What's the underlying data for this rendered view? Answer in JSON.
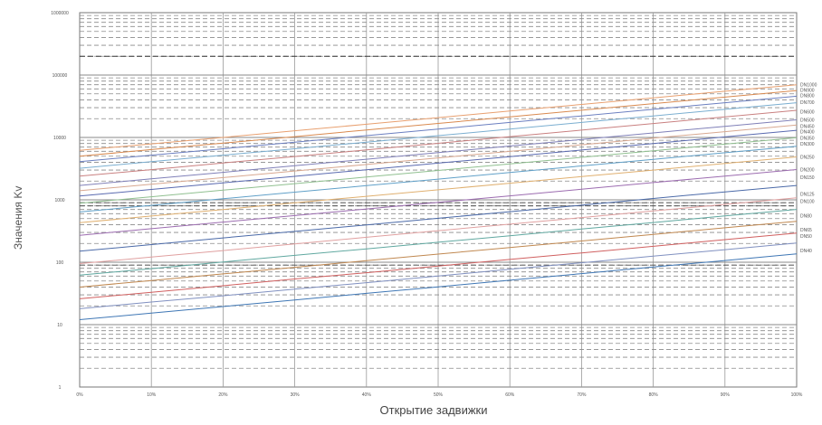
{
  "chart_data": {
    "type": "line",
    "xlabel": "Открытие задвижки",
    "ylabel": "Значения Kv",
    "yscale": "log",
    "ylim": [
      1,
      100000
    ],
    "x": [
      "0%",
      "10%",
      "20%",
      "30%",
      "40%",
      "50%",
      "60%",
      "70%",
      "80%",
      "90%",
      "100%"
    ],
    "x_tick_labels": [
      "0%",
      "10%",
      "20%",
      "30%",
      "40%",
      "50%",
      "60%",
      "70%",
      "80%",
      "90%",
      "100%"
    ],
    "y_tick_labels": [
      "1",
      "10",
      "100",
      "1000",
      "10000",
      "100000",
      "1000000"
    ],
    "grid": true,
    "legend": "right-end labels",
    "series": [
      {
        "name": "DN1000",
        "color": "#e8a070",
        "values": [
          6200,
          7900,
          10000,
          12800,
          16300,
          20800,
          26500,
          33800,
          43100,
          55000,
          70000
        ]
      },
      {
        "name": "DN900",
        "color": "#d98a50",
        "values": [
          5000,
          6400,
          8100,
          10300,
          13200,
          16800,
          21400,
          27300,
          34800,
          44300,
          56500
        ]
      },
      {
        "name": "DN800",
        "color": "#6b7fc0",
        "values": [
          4100,
          5200,
          6600,
          8400,
          10700,
          13600,
          17400,
          22100,
          28200,
          36000,
          45800
        ]
      },
      {
        "name": "DN700",
        "color": "#7aaed0",
        "values": [
          3200,
          4100,
          5200,
          6600,
          8400,
          10700,
          13600,
          17400,
          22100,
          28200,
          36000
        ]
      },
      {
        "name": "DN600",
        "color": "#c98080",
        "values": [
          2400,
          3050,
          3900,
          4950,
          6300,
          8050,
          10300,
          13100,
          16700,
          21300,
          27200
        ]
      },
      {
        "name": "DN500",
        "color": "#8080b8",
        "values": [
          1700,
          2170,
          2760,
          3520,
          4480,
          5710,
          7280,
          9270,
          11800,
          15100,
          19200
        ]
      },
      {
        "name": "DN450",
        "color": "#d8a890",
        "values": [
          1400,
          1780,
          2270,
          2900,
          3690,
          4700,
          5990,
          7630,
          9730,
          12400,
          15800
        ]
      },
      {
        "name": "DN400",
        "color": "#5a6ab0",
        "values": [
          1150,
          1470,
          1870,
          2380,
          3040,
          3870,
          4930,
          6280,
          8000,
          10200,
          13000
        ]
      },
      {
        "name": "DN350",
        "color": "#90c090",
        "values": [
          880,
          1120,
          1430,
          1820,
          2320,
          2960,
          3770,
          4800,
          6120,
          7800,
          9940
        ]
      },
      {
        "name": "DN300",
        "color": "#60a0c8",
        "values": [
          640,
          815,
          1040,
          1330,
          1690,
          2150,
          2740,
          3500,
          4460,
          5680,
          7240
        ]
      },
      {
        "name": "DN250",
        "color": "#e0b070",
        "values": [
          430,
          550,
          700,
          895,
          1140,
          1450,
          1850,
          2360,
          3000,
          3830,
          4880
        ]
      },
      {
        "name": "DN200",
        "color": "#9c6cb0",
        "values": [
          270,
          345,
          440,
          560,
          715,
          910,
          1160,
          1480,
          1890,
          2400,
          3060
        ]
      },
      {
        "name": "DN150",
        "color": "#4b6aa8",
        "values": [
          150,
          192,
          245,
          312,
          397,
          506,
          645,
          822,
          1050,
          1340,
          1700
        ]
      },
      {
        "name": "DN125",
        "color": "#e0a0a0",
        "values": [
          95,
          121,
          154,
          197,
          251,
          320,
          408,
          520,
          663,
          845,
          1077
        ]
      },
      {
        "name": "DN100",
        "color": "#60a8a0",
        "values": [
          62,
          79,
          101,
          129,
          164,
          209,
          266,
          340,
          433,
          552,
          703
        ]
      },
      {
        "name": "DN80",
        "color": "#c08850",
        "values": [
          40,
          51,
          65,
          83,
          106,
          135,
          172,
          219,
          279,
          356,
          453
        ]
      },
      {
        "name": "DN65",
        "color": "#d06060",
        "values": [
          26,
          33,
          42,
          54,
          68,
          87,
          111,
          141,
          180,
          230,
          293
        ]
      },
      {
        "name": "DN50",
        "color": "#8090c0",
        "values": [
          18,
          23,
          29,
          37,
          47,
          60,
          77,
          98,
          125,
          159,
          203
        ]
      },
      {
        "name": "DN40",
        "color": "#3f77b5",
        "values": [
          12,
          15.3,
          19.5,
          24.9,
          31.7,
          40.4,
          51.5,
          65.7,
          83.7,
          106.7,
          136
        ]
      }
    ],
    "right_labels": [
      {
        "text": "DN1000",
        "value": 70000
      },
      {
        "text": "DN900",
        "value": 58000
      },
      {
        "text": "DN800",
        "value": 47000
      },
      {
        "text": "DN700",
        "value": 37000
      },
      {
        "text": "DN600",
        "value": 26000
      },
      {
        "text": "DN500",
        "value": 19200
      },
      {
        "text": "DN450",
        "value": 15200
      },
      {
        "text": "DN400",
        "value": 12400
      },
      {
        "text": "DN350",
        "value": 9800
      },
      {
        "text": "DN300",
        "value": 7900
      },
      {
        "text": "DN250",
        "value": 4900
      },
      {
        "text": "DN200",
        "value": 3050
      },
      {
        "text": "DN150",
        "value": 2300
      },
      {
        "text": "DN125",
        "value": 1250
      },
      {
        "text": "DN100",
        "value": 950
      },
      {
        "text": "DN80",
        "value": 560
      },
      {
        "text": "DN65",
        "value": 330
      },
      {
        "text": "DN50",
        "value": 265
      },
      {
        "text": "DN40",
        "value": 155
      }
    ]
  }
}
